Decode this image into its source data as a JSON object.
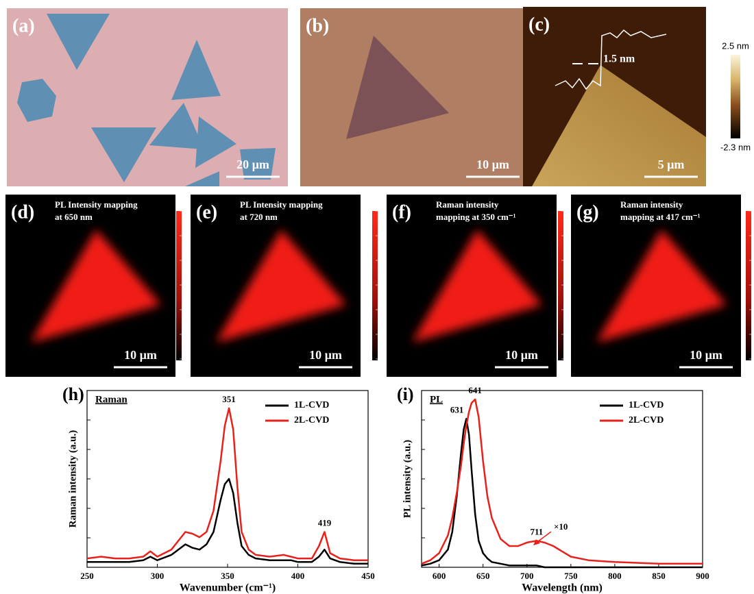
{
  "panels": [
    {
      "label": "(a)",
      "scale_bar": "20 µm"
    },
    {
      "label": "(b)",
      "scale_bar": "10 µm"
    },
    {
      "label": "(c)",
      "scale_bar": "5 µm",
      "step_height": "1.5 nm",
      "colorbar": [
        "2.5 nm",
        "-2.3 nm"
      ]
    },
    {
      "label": "(d)",
      "caption": [
        "PL Intensity  mapping",
        "at 650 nm"
      ],
      "scale_bar": "10 µm"
    },
    {
      "label": "(e)",
      "caption": [
        "PL Intensity  mapping",
        "at 720 nm"
      ],
      "scale_bar": "10 µm"
    },
    {
      "label": "(f)",
      "caption": [
        "Raman  intensity",
        "mapping  at 350 cm⁻¹"
      ],
      "scale_bar": "10 µm"
    },
    {
      "label": "(g)",
      "caption": [
        "Raman  intensity",
        "mapping  at 417 cm⁻¹"
      ],
      "scale_bar": "10 µm"
    }
  ],
  "chart_data": [
    {
      "type": "line",
      "panel_label": "(h)",
      "title": "Raman",
      "x_label": "Wavenumber (cm⁻¹)",
      "y_label": "Raman intensity (a.u.)",
      "x": [
        250,
        260,
        270,
        280,
        290,
        295,
        300,
        310,
        320,
        325,
        330,
        335,
        340,
        345,
        348,
        351,
        354,
        357,
        360,
        365,
        370,
        380,
        390,
        395,
        400,
        410,
        415,
        419,
        423,
        430,
        440,
        450
      ],
      "series": [
        {
          "name": "1L-CVD",
          "color": "#000000",
          "values": [
            0.03,
            0.03,
            0.03,
            0.03,
            0.04,
            0.06,
            0.04,
            0.07,
            0.13,
            0.11,
            0.1,
            0.13,
            0.2,
            0.38,
            0.47,
            0.5,
            0.42,
            0.25,
            0.12,
            0.07,
            0.05,
            0.04,
            0.04,
            0.04,
            0.03,
            0.03,
            0.06,
            0.1,
            0.05,
            0.03,
            0.02,
            0.02
          ]
        },
        {
          "name": "2L-CVD",
          "color": "#e8201a",
          "values": [
            0.05,
            0.06,
            0.05,
            0.05,
            0.06,
            0.09,
            0.06,
            0.1,
            0.2,
            0.19,
            0.17,
            0.2,
            0.32,
            0.6,
            0.8,
            0.9,
            0.78,
            0.45,
            0.2,
            0.1,
            0.07,
            0.06,
            0.07,
            0.06,
            0.05,
            0.05,
            0.12,
            0.2,
            0.08,
            0.05,
            0.04,
            0.04
          ]
        }
      ],
      "xlim": [
        250,
        450
      ],
      "xticks": [
        250,
        300,
        350,
        400,
        450
      ],
      "ylim": [
        0,
        1
      ],
      "peak_labels": [
        351,
        419
      ],
      "legend": "top-right"
    },
    {
      "type": "line",
      "panel_label": "(i)",
      "title": "PL",
      "x_label": "Wavelength (nm)",
      "y_label": "PL intensity (a.u.)",
      "x": [
        580,
        590,
        600,
        610,
        615,
        620,
        625,
        628,
        631,
        634,
        637,
        641,
        645,
        650,
        655,
        660,
        670,
        680,
        690,
        700,
        711,
        720,
        730,
        740,
        750,
        770,
        800,
        850,
        900
      ],
      "series": [
        {
          "name": "1L-CVD",
          "color": "#000000",
          "values": [
            0.01,
            0.02,
            0.04,
            0.1,
            0.2,
            0.4,
            0.65,
            0.78,
            0.84,
            0.75,
            0.55,
            0.3,
            0.15,
            0.08,
            0.05,
            0.03,
            0.02,
            0.01,
            0.01,
            0.01,
            0.01,
            0,
            0,
            0,
            0,
            0,
            0,
            0,
            0
          ]
        },
        {
          "name": "2L-CVD",
          "color": "#e8201a",
          "values": [
            0.02,
            0.04,
            0.08,
            0.18,
            0.28,
            0.42,
            0.58,
            0.7,
            0.8,
            0.88,
            0.93,
            0.95,
            0.85,
            0.6,
            0.4,
            0.28,
            0.16,
            0.12,
            0.12,
            0.14,
            0.15,
            0.14,
            0.12,
            0.09,
            0.06,
            0.04,
            0.03,
            0.02,
            0.02
          ]
        }
      ],
      "xlim": [
        580,
        900
      ],
      "xticks": [
        600,
        650,
        700,
        750,
        800,
        850,
        900
      ],
      "ylim": [
        0,
        1
      ],
      "peak_labels": [
        631,
        641,
        711
      ],
      "annotation": "×10",
      "legend": "top-right"
    }
  ]
}
